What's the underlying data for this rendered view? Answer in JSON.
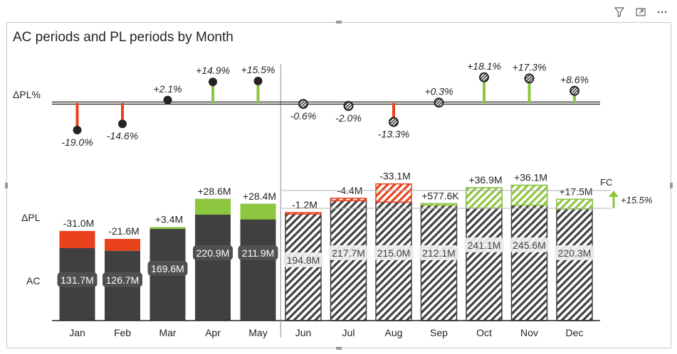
{
  "header": {
    "icons": [
      "filter-icon",
      "focus-mode-icon",
      "more-options-icon"
    ]
  },
  "title": "AC periods and PL periods by Month",
  "row_labels": {
    "dpl_pct": "ΔPL%",
    "dpl": "ΔPL",
    "ac": "AC"
  },
  "fc_label": "FC",
  "total_change_label": "+15.5%",
  "colors": {
    "ac": "#404040",
    "positive": "#8dc63f",
    "negative": "#e8411c",
    "hatch": "#404040",
    "axis": "#252423"
  },
  "chart_data": {
    "type": "bar",
    "title": "AC periods and PL periods by Month",
    "categories": [
      "Jan",
      "Feb",
      "Mar",
      "Apr",
      "May",
      "Jun",
      "Jul",
      "Aug",
      "Sep",
      "Oct",
      "Nov",
      "Dec"
    ],
    "actual_months": 5,
    "series": [
      {
        "name": "AC",
        "values": [
          131.7,
          126.7,
          169.6,
          220.9,
          211.9,
          194.8,
          217.7,
          215.0,
          212.1,
          241.1,
          245.6,
          220.3
        ],
        "labels": [
          "131.7M",
          "126.7M",
          "169.6M",
          "220.9M",
          "211.9M",
          "194.8M",
          "217.7M",
          "215.0M",
          "212.1M",
          "241.1M",
          "245.6M",
          "220.3M"
        ]
      },
      {
        "name": "ΔPL",
        "values": [
          -31.0,
          -21.6,
          3.4,
          28.6,
          28.4,
          -1.2,
          -4.4,
          -33.1,
          0.5776,
          36.9,
          36.1,
          17.5
        ],
        "labels": [
          "-31.0M",
          "-21.6M",
          "+3.4M",
          "+28.6M",
          "+28.4M",
          "-1.2M",
          "-4.4M",
          "-33.1M",
          "+577.6K",
          "+36.9M",
          "+36.1M",
          "+17.5M"
        ]
      },
      {
        "name": "ΔPL%",
        "values": [
          -19.0,
          -14.6,
          2.1,
          14.9,
          15.5,
          -0.6,
          -2.0,
          -13.3,
          0.3,
          18.1,
          17.3,
          8.6
        ],
        "labels": [
          "-19.0%",
          "-14.6%",
          "+2.1%",
          "+14.9%",
          "+15.5%",
          "-0.6%",
          "-2.0%",
          "-13.3%",
          "+0.3%",
          "+18.1%",
          "+17.3%",
          "+8.6%"
        ]
      }
    ]
  }
}
